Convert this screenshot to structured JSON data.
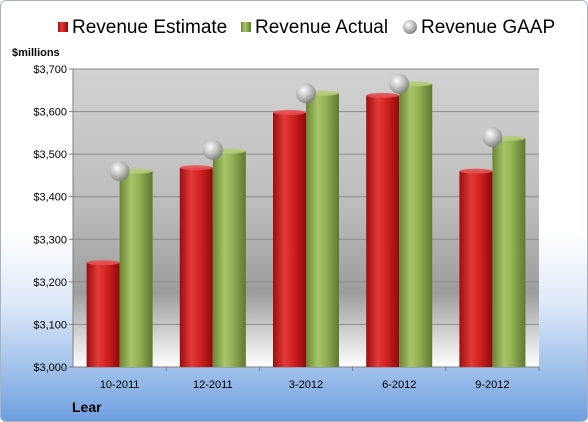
{
  "chart_data": {
    "type": "bar",
    "unit_label": "$millions",
    "footer": "Lear",
    "categories": [
      "10-2011",
      "12-2011",
      "3-2012",
      "6-2012",
      "9-2012"
    ],
    "series": [
      {
        "name": "Revenue Estimate",
        "kind": "bar",
        "color": "#cc1f1f",
        "values": [
          3245,
          3468,
          3598,
          3638,
          3460
        ]
      },
      {
        "name": "Revenue Actual",
        "kind": "bar",
        "color": "#8aa84a",
        "values": [
          3460,
          3507,
          3643,
          3665,
          3537
        ]
      },
      {
        "name": "Revenue GAAP",
        "kind": "marker",
        "color": "#bdbdbd",
        "values": [
          3460,
          3510,
          3643,
          3665,
          3540
        ]
      }
    ],
    "ylim": [
      3000,
      3700
    ],
    "yticks": [
      3000,
      3100,
      3200,
      3300,
      3400,
      3500,
      3600,
      3700
    ],
    "ytick_labels": [
      "$3,000",
      "$3,100",
      "$3,200",
      "$3,300",
      "$3,400",
      "$3,500",
      "$3,600",
      "$3,700"
    ],
    "grid": true,
    "legend_position": "top"
  }
}
